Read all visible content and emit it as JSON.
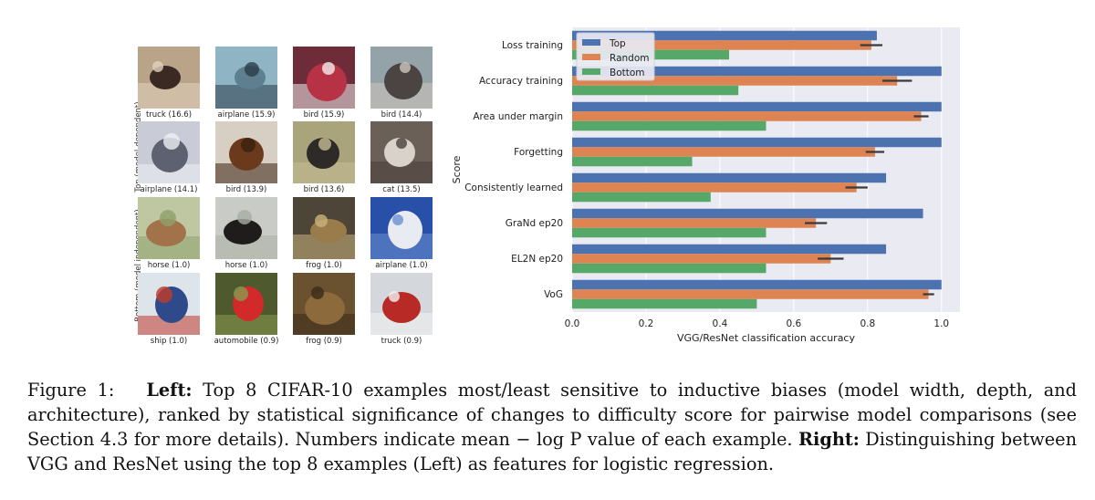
{
  "left_panel": {
    "group_labels": {
      "top": "Top (model-dependent)",
      "bottom": "Bottom (model independent)"
    },
    "thumbnails": [
      {
        "label": "truck (16.6)",
        "bg": "#b9a48a",
        "subject": "#3b2a24",
        "accent": "#e1d2bd",
        "icon": "person-photo-icon"
      },
      {
        "label": "airplane (15.9)",
        "bg": "#8fb4c4",
        "subject": "#5d7f8f",
        "accent": "#2c3d4a",
        "icon": "vehicle-photo-icon"
      },
      {
        "label": "bird (15.9)",
        "bg": "#6e2b38",
        "subject": "#b83246",
        "accent": "#f0ecee",
        "icon": "cockatoo-photo-icon"
      },
      {
        "label": "bird (14.4)",
        "bg": "#94a3a8",
        "subject": "#4a4442",
        "accent": "#cfc7bd",
        "icon": "bird-photo-icon"
      },
      {
        "label": "airplane (14.1)",
        "bg": "#c9ccd6",
        "subject": "#5e6170",
        "accent": "#eef0f6",
        "icon": "airplane-photo-icon"
      },
      {
        "label": "bird (13.9)",
        "bg": "#d8cfc4",
        "subject": "#6b3a1c",
        "accent": "#3a2010",
        "icon": "kiwi-bird-photo-icon"
      },
      {
        "label": "bird (13.6)",
        "bg": "#a9a47b",
        "subject": "#2d2a27",
        "accent": "#c4bc95",
        "icon": "ostrich-photo-icon"
      },
      {
        "label": "cat (13.5)",
        "bg": "#6a6058",
        "subject": "#d8d2cb",
        "accent": "#4a403a",
        "icon": "cat-photo-icon"
      },
      {
        "label": "horse (1.0)",
        "bg": "#bfc7a2",
        "subject": "#a2734a",
        "accent": "#8fa06a",
        "icon": "horse-photo-icon"
      },
      {
        "label": "horse (1.0)",
        "bg": "#c9ccc6",
        "subject": "#1f1c1c",
        "accent": "#a9aea4",
        "icon": "black-horse-photo-icon"
      },
      {
        "label": "frog (1.0)",
        "bg": "#4d4638",
        "subject": "#9a7c4a",
        "accent": "#cbb27c",
        "icon": "frog-photo-icon"
      },
      {
        "label": "airplane (1.0)",
        "bg": "#2850a8",
        "subject": "#e8ebf1",
        "accent": "#6c8fd0",
        "icon": "jet-photo-icon"
      },
      {
        "label": "ship (1.0)",
        "bg": "#dde4ea",
        "subject": "#2e4a8a",
        "accent": "#c0392b",
        "icon": "ship-photo-icon"
      },
      {
        "label": "automobile (0.9)",
        "bg": "#4e5a2e",
        "subject": "#d22a2a",
        "accent": "#8a9a50",
        "icon": "car-photo-icon"
      },
      {
        "label": "frog (0.9)",
        "bg": "#6a5230",
        "subject": "#8c6a3c",
        "accent": "#3a2a18",
        "icon": "toad-photo-icon"
      },
      {
        "label": "truck (0.9)",
        "bg": "#d4d8dc",
        "subject": "#b82a26",
        "accent": "#f2f2f2",
        "icon": "fire-truck-photo-icon"
      }
    ]
  },
  "chart_data": {
    "type": "bar",
    "orientation": "horizontal",
    "categories": [
      "Loss training",
      "Accuracy training",
      "Area under margin",
      "Forgetting",
      "Consistently learned",
      "GraNd ep20",
      "EL2N ep20",
      "VoG"
    ],
    "series": [
      {
        "name": "Top",
        "color": "#4c72b0",
        "values": [
          0.825,
          1.0,
          1.0,
          1.0,
          0.85,
          0.95,
          0.85,
          1.0
        ]
      },
      {
        "name": "Random",
        "color": "#dd8452",
        "values": [
          0.81,
          0.88,
          0.945,
          0.82,
          0.77,
          0.66,
          0.7,
          0.965
        ]
      },
      {
        "name": "Bottom",
        "color": "#55a868",
        "values": [
          0.425,
          0.45,
          0.525,
          0.325,
          0.375,
          0.525,
          0.525,
          0.5
        ]
      }
    ],
    "error_bars": {
      "series": "Random",
      "half_widths": [
        0.03,
        0.04,
        0.02,
        0.025,
        0.03,
        0.03,
        0.035,
        0.015
      ]
    },
    "xlabel": "VGG/ResNet classification accuracy",
    "ylabel": "Score",
    "xlim": [
      0.0,
      1.05
    ],
    "xticks": [
      "0.0",
      "0.2",
      "0.4",
      "0.6",
      "0.8",
      "1.0"
    ],
    "legend_placement": "top-left",
    "grid": true,
    "background": "#eaeaf2"
  },
  "caption": {
    "prefix": "Figure 1:",
    "left_label": "Left:",
    "left_text": "Top 8 CIFAR-10 examples most/least sensitive to inductive biases (model width, depth, and architecture), ranked by statistical significance of changes to difficulty score for pairwise model comparisons (see Section 4.3 for more details). Numbers indicate mean − log P value of each example.",
    "right_label": "Right:",
    "right_text": "Distinguishing between VGG and ResNet using the top 8 examples (Left) as features for logistic regression."
  }
}
